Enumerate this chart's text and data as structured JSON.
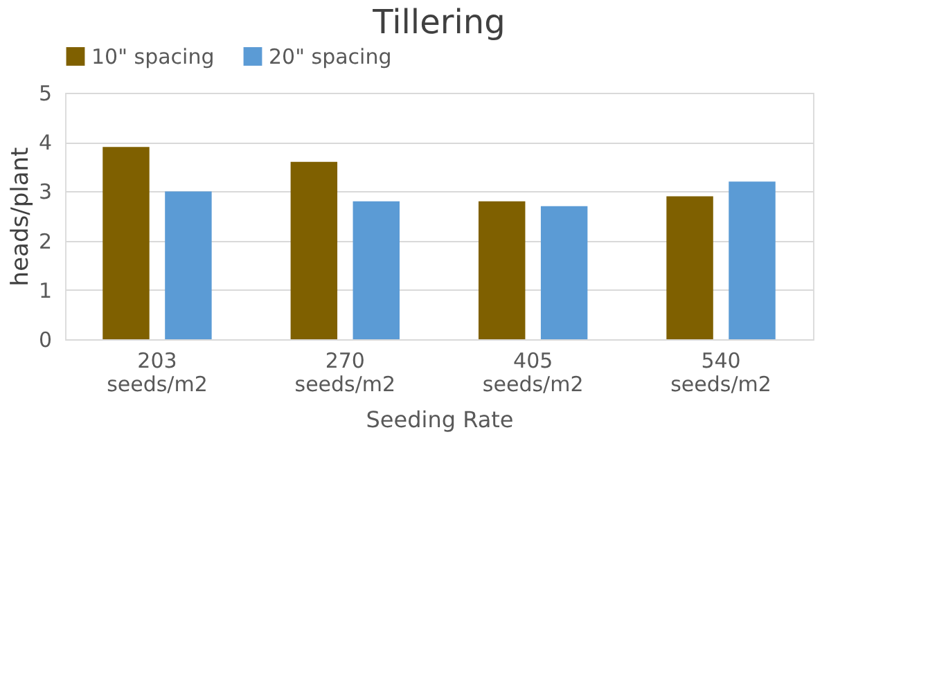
{
  "chart_data": {
    "type": "bar",
    "title": "Tillering",
    "xlabel": "Seeding Rate",
    "ylabel": "heads/plant",
    "categories": [
      "203 seeds/m2",
      "270 seeds/m2",
      "405 seeds/m2",
      "540 seeds/m2"
    ],
    "series": [
      {
        "name": "10\" spacing",
        "color": "#7f6000",
        "values": [
          3.9,
          3.6,
          2.8,
          2.9
        ]
      },
      {
        "name": "20\" spacing",
        "color": "#5b9bd5",
        "values": [
          3.0,
          2.8,
          2.7,
          3.2
        ]
      }
    ],
    "ylim": [
      0,
      5
    ],
    "yticks": [
      0,
      1,
      2,
      3,
      4,
      5
    ],
    "grid": "y",
    "legend": "top"
  }
}
